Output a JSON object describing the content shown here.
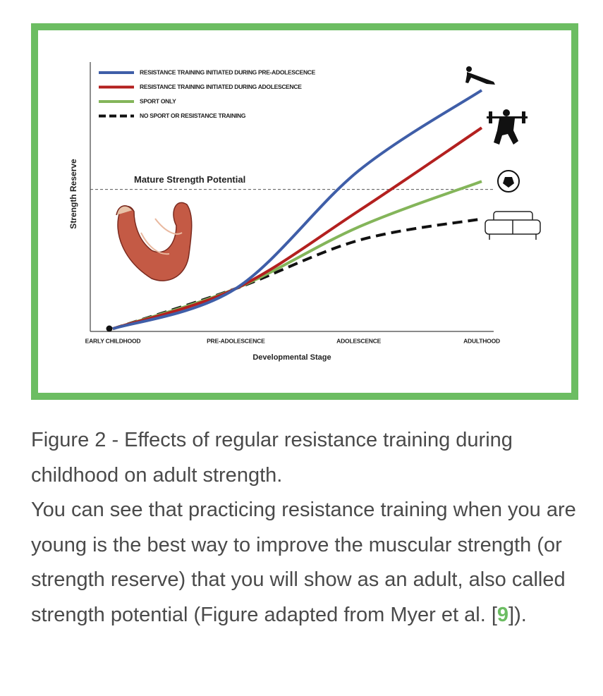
{
  "chart_data": {
    "type": "line",
    "x_label": "Developmental Stage",
    "y_label": "Strength Reserve",
    "categories": [
      "EARLY CHILDHOOD",
      "PRE-ADOLESCENCE",
      "ADOLESCENCE",
      "ADULTHOOD"
    ],
    "ylim": [
      0,
      100
    ],
    "reference": {
      "label": "Mature Strength Potential",
      "value": 53
    },
    "series": [
      {
        "name": "RESISTANCE TRAINING INITIATED DURING PRE-ADOLESCENCE",
        "color": "#3f5ea8",
        "values": [
          1,
          16,
          60,
          90
        ]
      },
      {
        "name": "RESISTANCE TRAINING INITIATED DURING ADOLESCENCE",
        "color": "#b3201f",
        "values": [
          1,
          16,
          45,
          76
        ]
      },
      {
        "name": "SPORT ONLY",
        "color": "#84b55a",
        "values": [
          1,
          16,
          39,
          56
        ]
      },
      {
        "name": "NO SPORT OR RESISTANCE TRAINING",
        "color": "#111111",
        "values": [
          1,
          16,
          34,
          42
        ],
        "dashed": true
      }
    ]
  },
  "caption": {
    "title": "Figure 2 - Effects of regular resistance training during childhood on adult strength.",
    "text_before": "You can see that practicing resistance training when you are young is the best way to improve the muscular strength (or strength reserve) that you will show as an adult, also called strength potential (Figure adapted from Myer et al. [",
    "ref": "9",
    "text_after": "])."
  }
}
